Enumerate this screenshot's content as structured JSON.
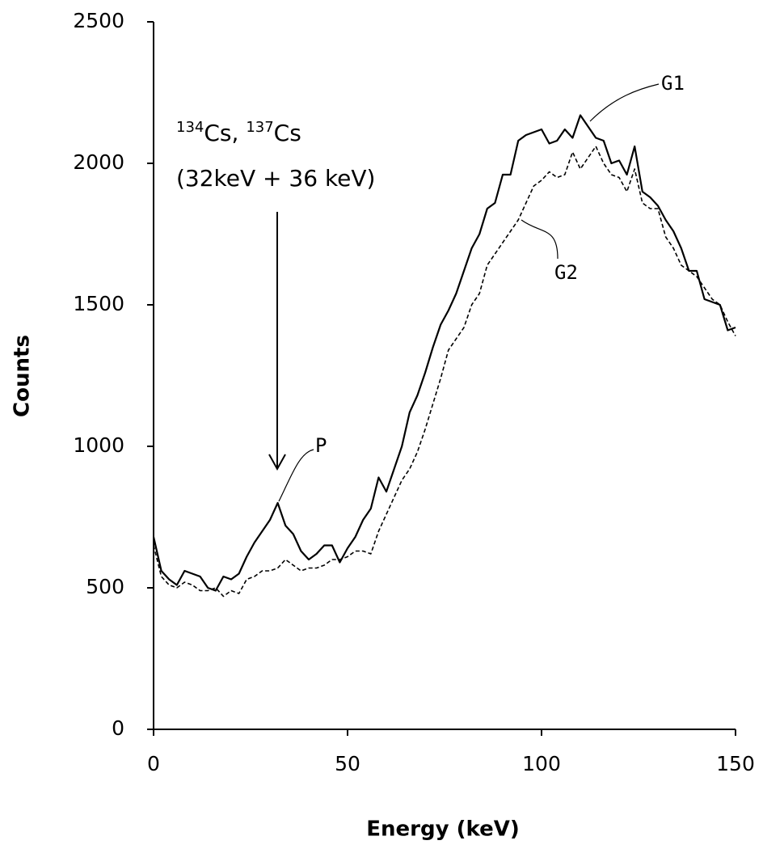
{
  "chart_data": {
    "type": "line",
    "x_label": "Energy (keV)",
    "y_label": "Counts",
    "xlim": [
      0,
      150
    ],
    "xticks": [
      0,
      50,
      100,
      150
    ],
    "ylim": [
      0,
      2500
    ],
    "yticks": [
      0,
      500,
      1000,
      1500,
      2000,
      2500
    ],
    "grid": false,
    "x": [
      0,
      2,
      4,
      6,
      8,
      10,
      12,
      14,
      16,
      18,
      20,
      22,
      24,
      26,
      28,
      30,
      32,
      34,
      36,
      38,
      40,
      42,
      44,
      46,
      48,
      50,
      52,
      54,
      56,
      58,
      60,
      62,
      64,
      66,
      68,
      70,
      72,
      74,
      76,
      78,
      80,
      82,
      84,
      86,
      88,
      90,
      92,
      94,
      96,
      98,
      100,
      102,
      104,
      106,
      108,
      110,
      112,
      114,
      116,
      118,
      120,
      122,
      124,
      126,
      128,
      130,
      132,
      134,
      136,
      138,
      140,
      142,
      144,
      146,
      148,
      150
    ],
    "series": [
      {
        "name": "G1",
        "color": "#000000",
        "dash": "solid",
        "values": [
          680,
          560,
          530,
          510,
          560,
          550,
          540,
          500,
          490,
          540,
          530,
          550,
          610,
          660,
          700,
          740,
          800,
          720,
          690,
          630,
          600,
          620,
          650,
          650,
          590,
          640,
          680,
          740,
          780,
          890,
          840,
          920,
          1000,
          1120,
          1180,
          1260,
          1350,
          1430,
          1480,
          1540,
          1620,
          1700,
          1750,
          1840,
          1860,
          1960,
          1960,
          2080,
          2100,
          2110,
          2120,
          2070,
          2080,
          2120,
          2090,
          2170,
          2130,
          2090,
          2080,
          2000,
          2010,
          1960,
          2060,
          1900,
          1880,
          1850,
          1800,
          1760,
          1700,
          1620,
          1620,
          1520,
          1510,
          1500,
          1410,
          1420
        ]
      },
      {
        "name": "G2",
        "color": "#000000",
        "dash": "dashed",
        "values": [
          650,
          540,
          510,
          500,
          520,
          510,
          490,
          490,
          500,
          470,
          490,
          480,
          530,
          540,
          560,
          560,
          570,
          600,
          580,
          560,
          570,
          570,
          580,
          600,
          600,
          610,
          630,
          630,
          620,
          700,
          760,
          820,
          880,
          920,
          980,
          1060,
          1150,
          1240,
          1340,
          1380,
          1420,
          1500,
          1540,
          1640,
          1680,
          1720,
          1760,
          1800,
          1860,
          1920,
          1940,
          1970,
          1950,
          1960,
          2040,
          1980,
          2020,
          2060,
          2000,
          1960,
          1950,
          1900,
          1980,
          1860,
          1840,
          1840,
          1740,
          1700,
          1640,
          1620,
          1600,
          1560,
          1520,
          1500,
          1440,
          1390
        ]
      }
    ],
    "annotations": {
      "isotopes": [
        "134",
        "Cs, ",
        "137",
        "Cs"
      ],
      "energies": "(32keV + 36 keV)",
      "peak": "P"
    }
  }
}
